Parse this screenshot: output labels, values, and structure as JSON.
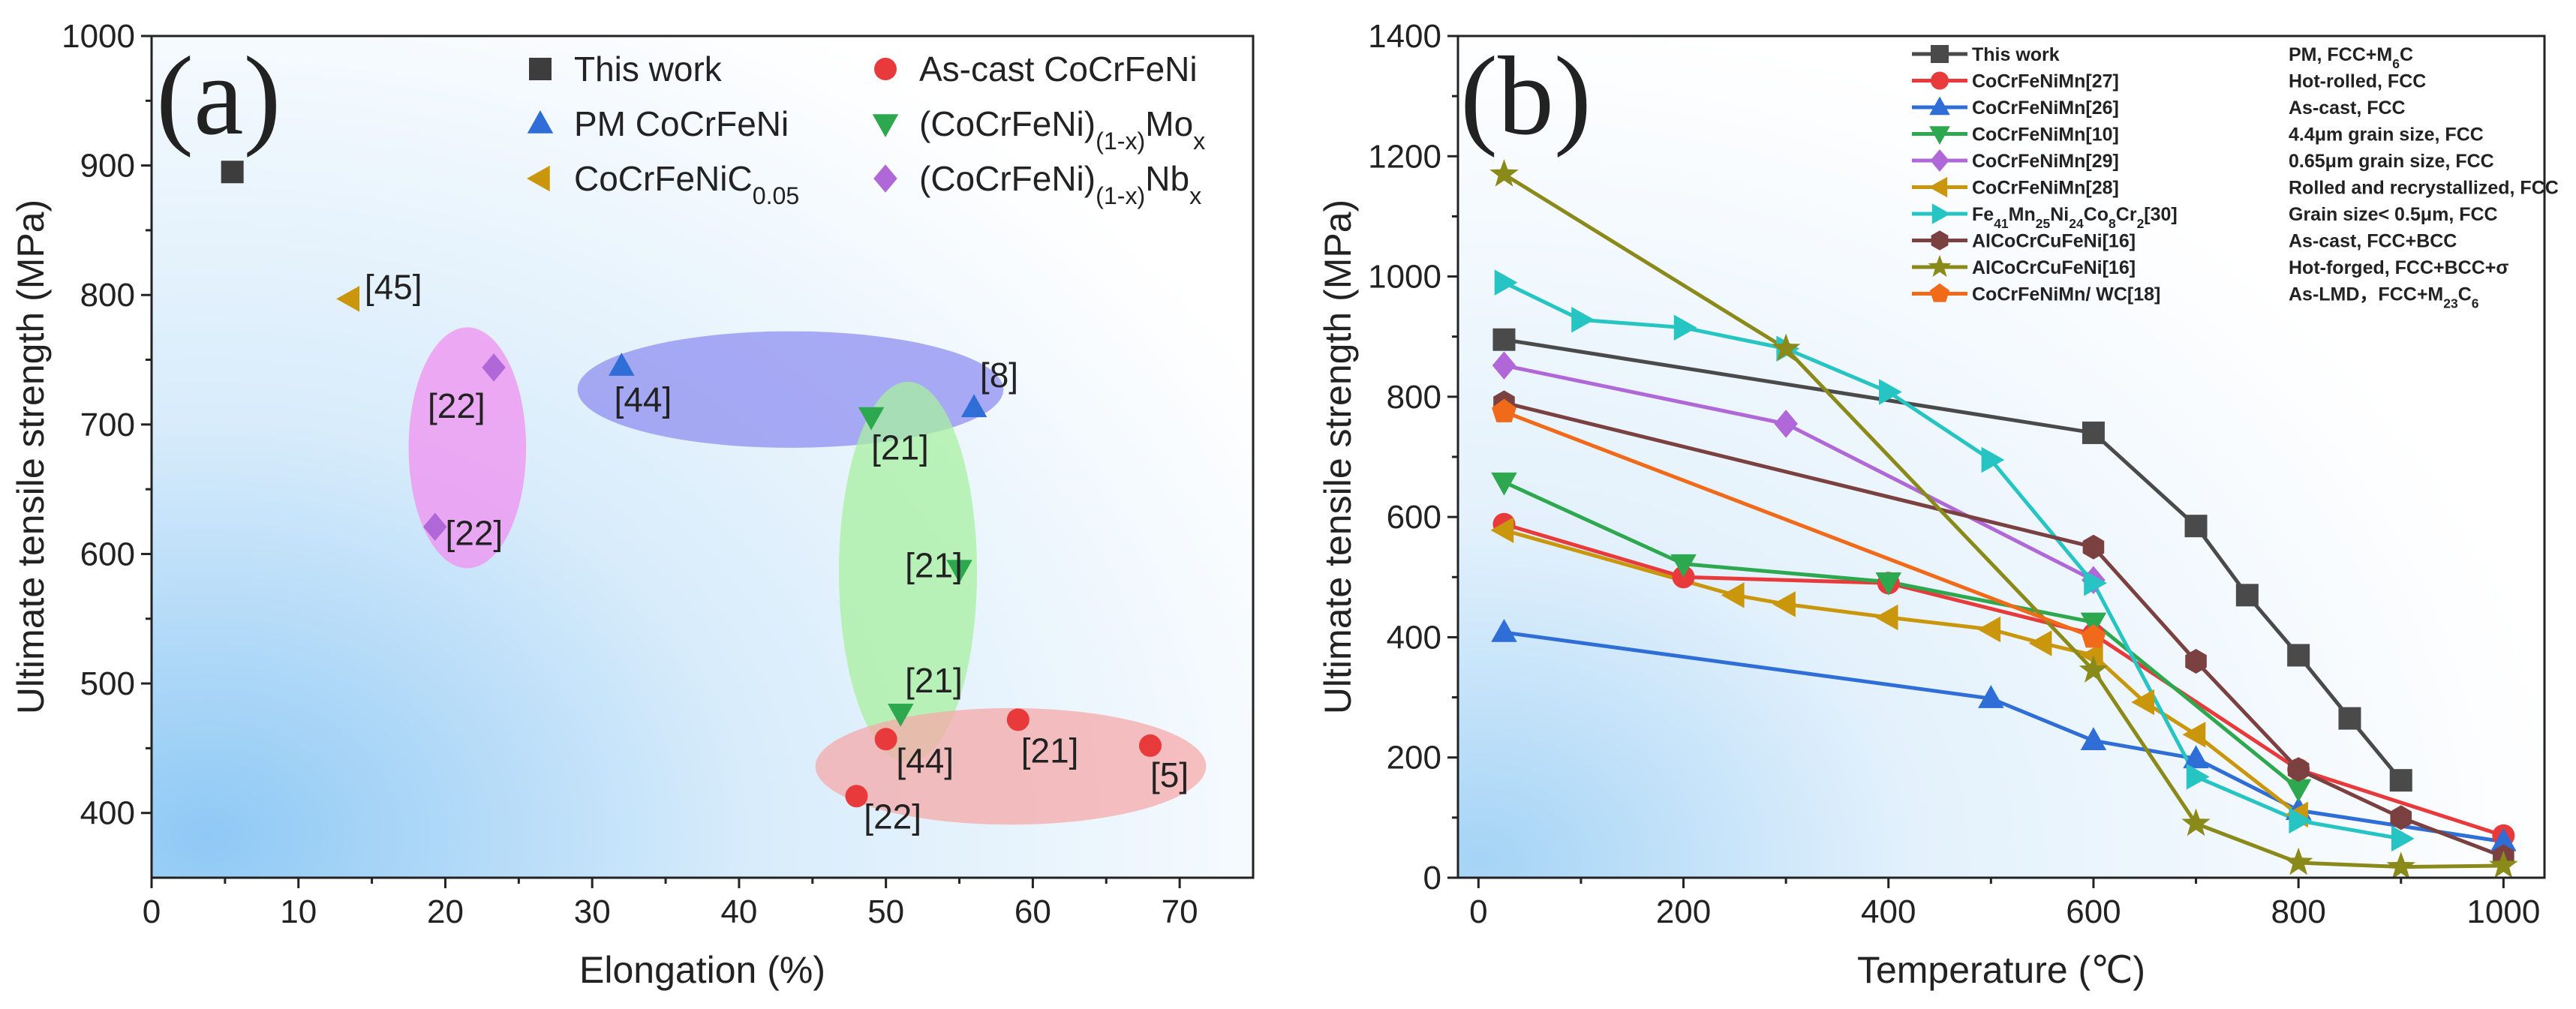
{
  "chart_data": [
    {
      "type": "scatter",
      "panel_label": "(a)",
      "xlabel": "Elongation (%)",
      "ylabel": "Ultimate tensile strength (MPa)",
      "xlim": [
        0,
        75
      ],
      "ylim": [
        350,
        1000
      ],
      "xticks": [
        "0",
        "10",
        "20",
        "30",
        "40",
        "50",
        "60",
        "70"
      ],
      "xtick_values": [
        0,
        10,
        20,
        30,
        40,
        50,
        60,
        70
      ],
      "yticks": [
        "400",
        "500",
        "600",
        "700",
        "800",
        "900",
        "1000"
      ],
      "ytick_values": [
        400,
        500,
        600,
        700,
        800,
        900,
        1000
      ],
      "series": [
        {
          "name": "This work",
          "marker": "square",
          "color": "#3d3d3d",
          "points": [
            [
              5.5,
              895
            ]
          ]
        },
        {
          "name": "As-cast CoCrFeNi",
          "marker": "circle",
          "color": "#e8393b",
          "points": [
            [
              48,
              413
            ],
            [
              50,
              457
            ],
            [
              59,
              472
            ],
            [
              68,
              452
            ]
          ]
        },
        {
          "name": "PM CoCrFeNi",
          "marker": "triangle-up",
          "color": "#2e6ed6",
          "points": [
            [
              32,
              745
            ],
            [
              56,
              713
            ]
          ]
        },
        {
          "name": "(CoCrFeNi)",
          "name_sub": "(1-x)",
          "name_tail": "Mo",
          "name_tail_sub": "x",
          "marker": "triangle-down",
          "color": "#2ea84f",
          "points": [
            [
              49,
              706
            ],
            [
              55,
              588
            ],
            [
              51,
              477
            ]
          ]
        },
        {
          "name": "CoCrFeNiC",
          "name_sub": "0.05",
          "marker": "triangle-left",
          "color": "#c9960c",
          "points": [
            [
              13.5,
              797
            ]
          ]
        },
        {
          "name": "(CoCrFeNi)",
          "name_sub": "(1-x)",
          "name_tail": "Nb",
          "name_tail_sub": "x",
          "marker": "diamond",
          "color": "#b067d8",
          "points": [
            [
              23.3,
              744
            ],
            [
              19.3,
              621
            ]
          ]
        }
      ],
      "regions": [
        {
          "name": "blue-region",
          "color": "#8f8ff0",
          "cx": 43.5,
          "cy": 727,
          "rx": 14.5,
          "ry": 45
        },
        {
          "name": "pink-region",
          "color": "#f090f0",
          "cx": 21.5,
          "cy": 682,
          "rx": 4,
          "ry": 93
        },
        {
          "name": "green-region",
          "color": "#a8f0a0",
          "cx": 51.5,
          "cy": 586,
          "rx": 4.7,
          "ry": 147
        },
        {
          "name": "red-region",
          "color": "#f5aaaa",
          "cx": 58.5,
          "cy": 436,
          "rx": 13.3,
          "ry": 45
        }
      ],
      "annotations": [
        {
          "text": "[45]",
          "x": 14.5,
          "y": 797
        },
        {
          "text": "[22]",
          "x": 18.8,
          "y": 705
        },
        {
          "text": "[22]",
          "x": 20,
          "y": 607
        },
        {
          "text": "[44]",
          "x": 31.5,
          "y": 710
        },
        {
          "text": "[8]",
          "x": 56.4,
          "y": 729
        },
        {
          "text": "[21]",
          "x": 49,
          "y": 673
        },
        {
          "text": "[21]",
          "x": 51.3,
          "y": 582
        },
        {
          "text": "[21]",
          "x": 51.3,
          "y": 493
        },
        {
          "text": "[44]",
          "x": 50.7,
          "y": 431
        },
        {
          "text": "[21]",
          "x": 59.2,
          "y": 439
        },
        {
          "text": "[5]",
          "x": 68,
          "y": 420
        },
        {
          "text": "[22]",
          "x": 48.5,
          "y": 388
        }
      ]
    },
    {
      "type": "line",
      "panel_label": "(b)",
      "xlabel": "Temperature (℃)",
      "ylabel": "Ultimate tensile strength (MPa)",
      "xlim": [
        -20,
        1040
      ],
      "ylim": [
        0,
        1400
      ],
      "xticks": [
        "0",
        "200",
        "400",
        "600",
        "800",
        "1000"
      ],
      "xtick_values": [
        0,
        200,
        400,
        600,
        800,
        1000
      ],
      "yticks": [
        "0",
        "200",
        "400",
        "600",
        "800",
        "1000",
        "1200",
        "1400"
      ],
      "ytick_values": [
        0,
        200,
        400,
        600,
        800,
        1000,
        1200,
        1400
      ],
      "series": [
        {
          "name": "This work",
          "condition": "PM, FCC+M",
          "condition_sub": "6",
          "condition_tail": "C",
          "marker": "square",
          "color": "#4a4a4a",
          "x": [
            25,
            600,
            700,
            750,
            800,
            850,
            900
          ],
          "y": [
            895,
            740,
            585,
            470,
            370,
            265,
            162
          ]
        },
        {
          "name": "CoCrFeNiMn[27]",
          "condition": "Hot-rolled, FCC",
          "marker": "circle",
          "color": "#e8393b",
          "x": [
            25,
            200,
            400,
            600,
            800,
            1000
          ],
          "y": [
            588,
            500,
            490,
            405,
            180,
            70
          ]
        },
        {
          "name": "CoCrFeNiMn[26]",
          "condition": "As-cast, FCC",
          "marker": "triangle-up",
          "color": "#2e6ed6",
          "x": [
            25,
            500,
            600,
            700,
            800,
            1000
          ],
          "y": [
            408,
            298,
            228,
            198,
            112,
            60
          ]
        },
        {
          "name": "CoCrFeNiMn[10]",
          "condition": "4.4μm grain size, FCC",
          "marker": "triangle-down",
          "color": "#2ea84f",
          "x": [
            25,
            200,
            400,
            600,
            800
          ],
          "y": [
            658,
            522,
            492,
            425,
            148
          ]
        },
        {
          "name": "CoCrFeNiMn[29]",
          "condition": "0.65μm grain size, FCC",
          "marker": "diamond",
          "color": "#b067d8",
          "x": [
            25,
            300,
            600
          ],
          "y": [
            852,
            755,
            495
          ]
        },
        {
          "name": "CoCrFeNiMn[28]",
          "condition": "Rolled and recrystallized, FCC",
          "marker": "triangle-left",
          "color": "#c9960c",
          "x": [
            25,
            250,
            300,
            400,
            500,
            550,
            600,
            650,
            700,
            800
          ],
          "y": [
            578,
            470,
            455,
            433,
            413,
            390,
            370,
            292,
            238,
            105
          ]
        },
        {
          "name": "Fe",
          "name_parts": [
            [
              "Fe",
              ""
            ],
            [
              "41",
              "sub"
            ],
            [
              "Mn",
              ""
            ],
            [
              "25",
              "sub"
            ],
            [
              "Ni",
              ""
            ],
            [
              "24",
              "sub"
            ],
            [
              "Co",
              ""
            ],
            [
              "8",
              "sub"
            ],
            [
              "Cr",
              ""
            ],
            [
              "2",
              "sub"
            ],
            [
              "[30]",
              ""
            ]
          ],
          "condition": "Grain size< 0.5μm, FCC",
          "marker": "triangle-right",
          "color": "#27c4c4",
          "x": [
            25,
            100,
            200,
            300,
            400,
            500,
            600,
            700,
            800,
            900
          ],
          "y": [
            990,
            928,
            915,
            880,
            808,
            695,
            490,
            168,
            95,
            65
          ]
        },
        {
          "name": "AlCoCrCuFeNi[16]",
          "condition": "As-cast, FCC+BCC",
          "marker": "hexagon",
          "color": "#7b4040",
          "x": [
            25,
            600,
            700,
            800,
            900,
            1000
          ],
          "y": [
            790,
            550,
            360,
            180,
            100,
            35
          ]
        },
        {
          "name": "AlCoCrCuFeNi[16]",
          "condition": "Hot-forged, FCC+BCC+σ",
          "marker": "star",
          "color": "#8a8a1a",
          "x": [
            25,
            300,
            600,
            700,
            800,
            900,
            1000
          ],
          "y": [
            1170,
            880,
            345,
            90,
            25,
            18,
            20
          ]
        },
        {
          "name": "CoCrFeNiMn/ WC[18]",
          "condition": "As-LMD，FCC+M",
          "condition_sub": "23",
          "condition_tail": "C",
          "condition_tail_sub": "6",
          "marker": "pentagon",
          "color": "#f06a1a",
          "x": [
            25,
            600
          ],
          "y": [
            775,
            400
          ]
        }
      ]
    }
  ]
}
